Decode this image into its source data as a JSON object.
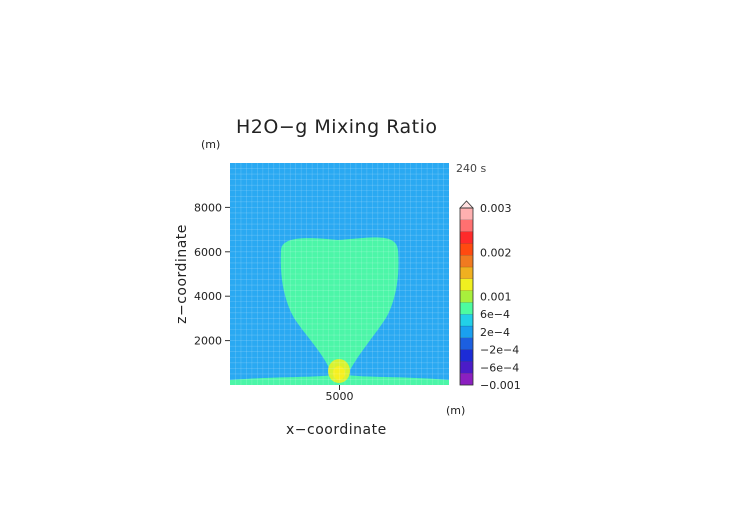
{
  "chart_data": {
    "type": "heatmap",
    "title": "H2O−g Mixing Ratio",
    "xlabel": "x−coordinate",
    "ylabel": "z−coordinate",
    "x_unit": "(m)",
    "y_unit": "(m)",
    "time_label": "240 s",
    "x_ticks": [
      5000
    ],
    "y_ticks": [
      2000,
      4000,
      6000,
      8000
    ],
    "xlim": [
      0,
      10000
    ],
    "ylim": [
      0,
      10000
    ],
    "grid": true,
    "colorbar": {
      "levels": [
        -0.001,
        -0.0008,
        -0.0006,
        -0.0004,
        -0.0002,
        0,
        0.0002,
        0.0004,
        0.0006,
        0.0008,
        0.001,
        0.0015,
        0.002,
        0.0025,
        0.003
      ],
      "tick_labels": [
        {
          "value": 0.003,
          "label": "0.003"
        },
        {
          "value": 0.002,
          "label": "0.002"
        },
        {
          "value": 0.001,
          "label": "0.001"
        },
        {
          "value": 0.0006,
          "label": "6e−4"
        },
        {
          "value": 0.0002,
          "label": "2e−4"
        },
        {
          "value": -0.0002,
          "label": "−2e−4"
        },
        {
          "value": -0.0006,
          "label": "−6e−4"
        },
        {
          "value": -0.001,
          "label": "−0.001"
        }
      ],
      "colors": [
        "#8b1fc0",
        "#4b1cc8",
        "#1c2cd6",
        "#1c5fe0",
        "#1aa0f0",
        "#22d0e8",
        "#4dfca0",
        "#a8f03c",
        "#f0f020",
        "#f0b020",
        "#f07a20",
        "#ff4a10",
        "#ff2a2a",
        "#ff7070",
        "#ffb0b0"
      ]
    },
    "regions": [
      {
        "name": "background",
        "value": 0.0001,
        "color": "#2aa9f2"
      },
      {
        "name": "plume",
        "value": 0.0003,
        "color": "#4cf6a8"
      },
      {
        "name": "bubble",
        "value": 0.0006,
        "color": "#d8f22e"
      },
      {
        "name": "bubble-core",
        "value": 0.0007,
        "color": "#f6f020"
      }
    ]
  }
}
